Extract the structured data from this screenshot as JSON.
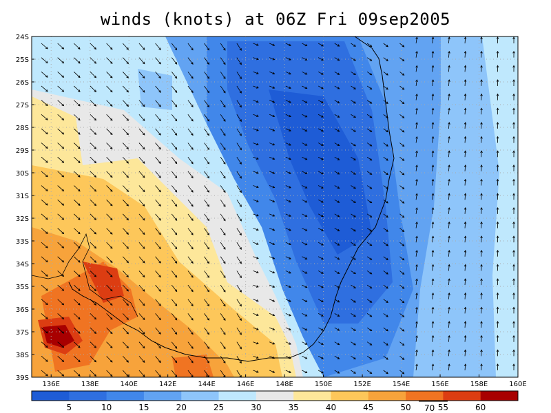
{
  "title": "winds (knots) at 06Z Fri 09sep2005",
  "lat_labels": [
    "24S",
    "25S",
    "26S",
    "27S",
    "28S",
    "29S",
    "30S",
    "31S",
    "32S",
    "33S",
    "34S",
    "35S",
    "36S",
    "37S",
    "38S",
    "39S"
  ],
  "lon_labels": [
    "136E",
    "138E",
    "140E",
    "142E",
    "144E",
    "146E",
    "148E",
    "150E",
    "152E",
    "154E",
    "156E",
    "158E",
    "160E"
  ],
  "colorbar": {
    "labels": [
      "5",
      "10",
      "15",
      "20",
      "25",
      "30",
      "35",
      "40",
      "45",
      "50",
      "55",
      "60"
    ],
    "colors": [
      "#1e5cd6",
      "#2f6fe0",
      "#4187ea",
      "#62a3f2",
      "#8ec5fa",
      "#bfe8fd",
      "#e8e8e8",
      "#fde79a",
      "#fdc75a",
      "#f7a33b",
      "#f07422",
      "#dc3d12",
      "#a80000"
    ],
    "vector_ref_label": "70"
  },
  "colors": {
    "coast": "#000000",
    "frame": "#000000",
    "arrow": "#000000",
    "dotted_grid": "#aaaaaa"
  }
}
